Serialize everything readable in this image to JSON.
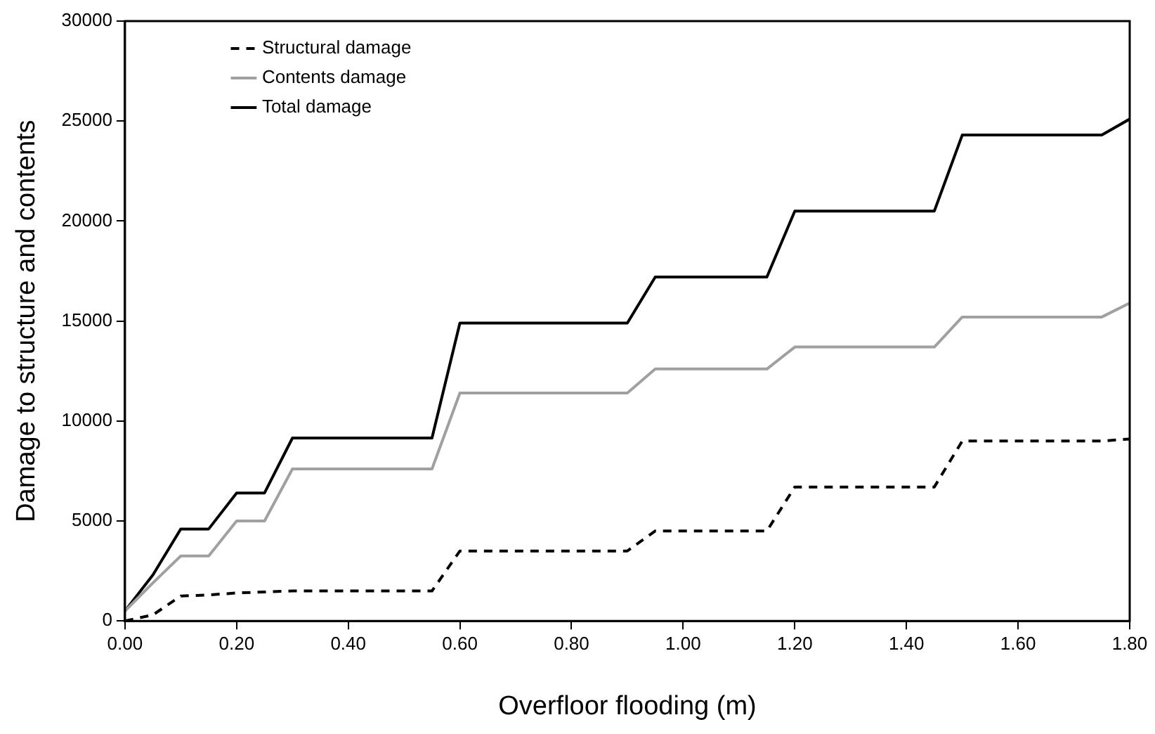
{
  "chart_data": {
    "type": "line",
    "xlabel": "Overfloor flooding (m)",
    "ylabel": "Damage to structure and contents",
    "x": [
      0,
      0.05,
      0.1,
      0.15,
      0.2,
      0.25,
      0.3,
      0.55,
      0.6,
      0.9,
      0.95,
      1.15,
      1.2,
      1.45,
      1.5,
      1.75,
      1.8
    ],
    "series": [
      {
        "name": "Structural damage",
        "color": "#000000",
        "line_style": "dashed",
        "values": [
          0,
          300,
          1250,
          1300,
          1400,
          1450,
          1500,
          1500,
          3500,
          3500,
          4500,
          4500,
          6700,
          6700,
          9000,
          9000,
          9100
        ]
      },
      {
        "name": "Contents damage",
        "color": "#a0a0a0",
        "line_style": "solid",
        "values": [
          500,
          1900,
          3250,
          3250,
          5000,
          5000,
          7600,
          7600,
          11400,
          11400,
          12600,
          12600,
          13700,
          13700,
          15200,
          15200,
          15900
        ]
      },
      {
        "name": "Total damage",
        "color": "#000000",
        "line_style": "solid",
        "values": [
          500,
          2300,
          4600,
          4600,
          6400,
          6400,
          9150,
          9150,
          14900,
          14900,
          17200,
          17200,
          20500,
          20500,
          24300,
          24300,
          25100
        ]
      }
    ],
    "xlim": [
      0,
      1.8
    ],
    "xticks": [
      {
        "value": 0,
        "label": "0.00"
      },
      {
        "value": 0.2,
        "label": "0.20"
      },
      {
        "value": 0.4,
        "label": "0.40"
      },
      {
        "value": 0.6,
        "label": "0.60"
      },
      {
        "value": 0.8,
        "label": "0.80"
      },
      {
        "value": 1,
        "label": "1.00"
      },
      {
        "value": 1.2,
        "label": "1.20"
      },
      {
        "value": 1.4,
        "label": "1.40"
      },
      {
        "value": 1.6,
        "label": "1.60"
      },
      {
        "value": 1.8,
        "label": "1.80"
      }
    ],
    "ylim": [
      0,
      30000
    ],
    "yticks": [
      0,
      5000,
      10000,
      15000,
      20000,
      25000,
      30000
    ],
    "grid": false,
    "legend": "top left",
    "marker": "none"
  }
}
